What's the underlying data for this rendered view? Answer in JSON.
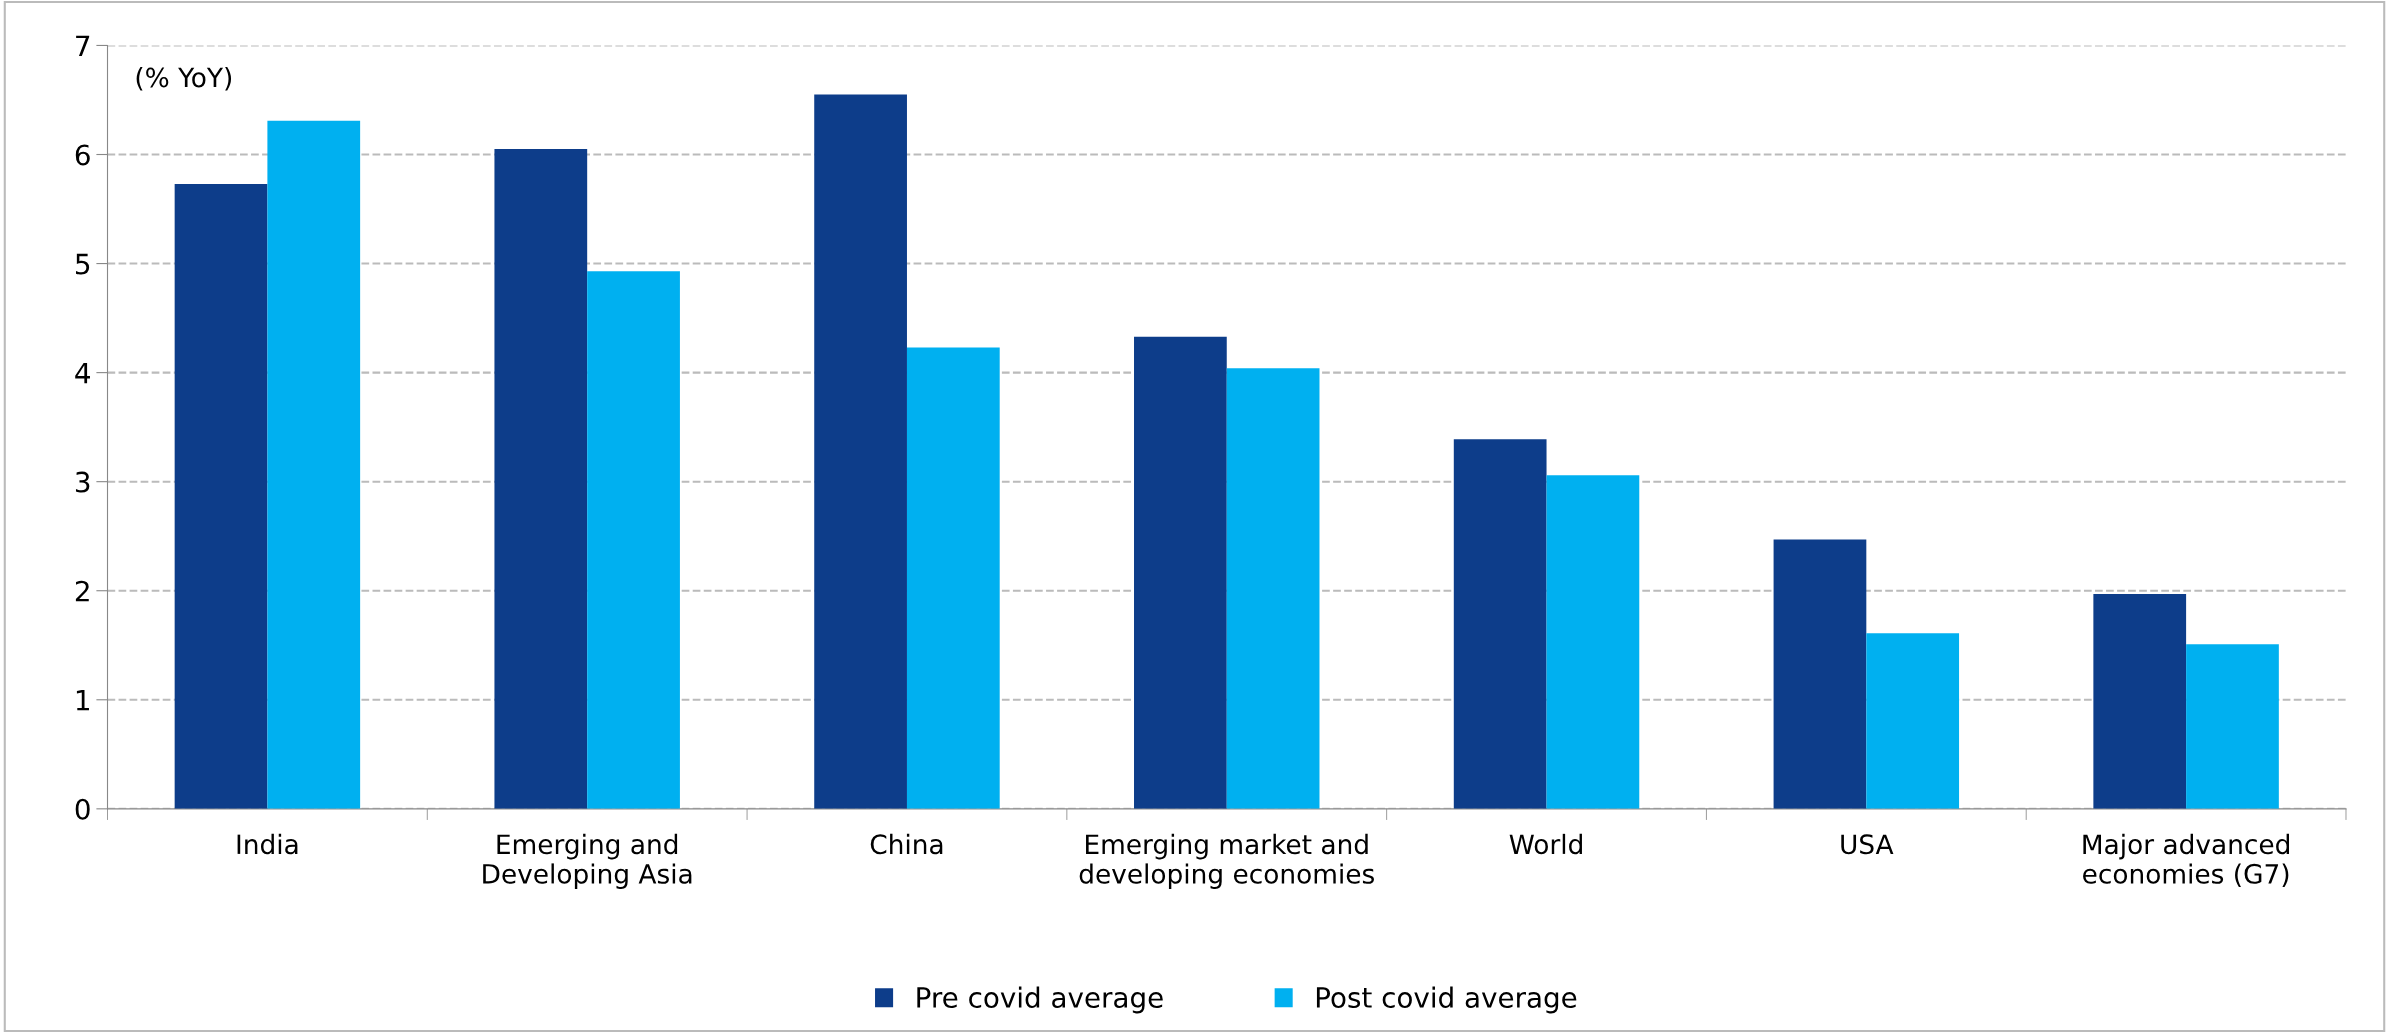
{
  "chart_data": {
    "type": "bar",
    "ylabel": "(% YoY)",
    "categories": [
      "India",
      "Emerging and\nDeveloping Asia",
      "China",
      "Emerging market and\ndeveloping economies",
      "World",
      "USA",
      "Major advanced\neconomies (G7)"
    ],
    "series": [
      {
        "name": "Pre covid average",
        "color": "#0d3d8a",
        "values": [
          5.73,
          6.05,
          6.55,
          4.33,
          3.39,
          2.47,
          1.97
        ]
      },
      {
        "name": "Post covid average",
        "color": "#00b0f0",
        "values": [
          6.31,
          4.93,
          4.23,
          4.04,
          3.06,
          1.61,
          1.51
        ]
      }
    ],
    "ylim": [
      0,
      7
    ],
    "yticks": [
      0,
      1,
      2,
      3,
      4,
      5,
      6,
      7
    ],
    "grid": "y",
    "legend": "bottom"
  }
}
